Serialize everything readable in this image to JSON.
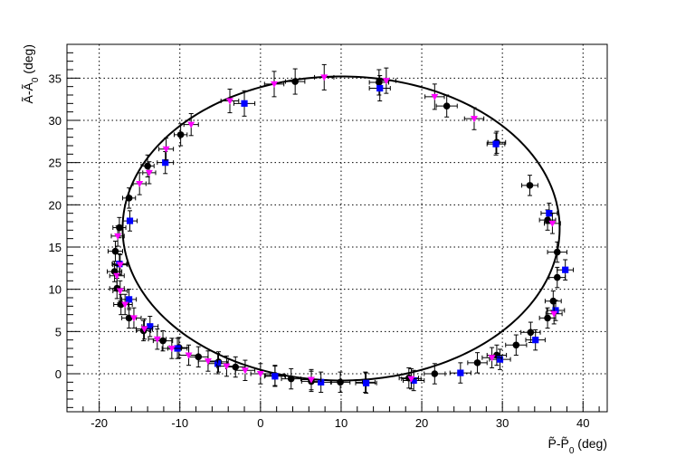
{
  "chart_data": {
    "type": "scatter",
    "xlabel": "P̃-P̃0 (deg)",
    "xlabel_main": "P̃-P̃",
    "xlabel_sub": "0",
    "xlabel_unit": " (deg)",
    "ylabel": "Ã-Ã0 (deg)",
    "ylabel_main": "Ã-Ã",
    "ylabel_sub": "0",
    "ylabel_unit": " (deg)",
    "xlim": [
      -24,
      43
    ],
    "ylim": [
      -4.5,
      39
    ],
    "x_ticks": [
      -20,
      -10,
      0,
      10,
      20,
      30,
      40
    ],
    "y_ticks": [
      0,
      5,
      10,
      15,
      20,
      25,
      30,
      35
    ],
    "x_tick_labels": [
      "-20",
      "-10",
      "0",
      "10",
      "20",
      "30",
      "40"
    ],
    "y_tick_labels": [
      "0",
      "5",
      "10",
      "15",
      "20",
      "25",
      "30",
      "35"
    ],
    "grid": true,
    "fit_curve": {
      "type": "ellipse",
      "center": [
        10.0,
        17.2
      ],
      "semi_axis_x": 27.1,
      "semi_axis_y": 18.0,
      "tilt_deg": 0,
      "color": "#000000"
    },
    "series": [
      {
        "marker": "circle",
        "color": "#000000",
        "points": [
          [
            -18.0,
            14.5,
            0.9,
            1.2
          ],
          [
            -17.5,
            17.3,
            0.8,
            1.2
          ],
          [
            -16.3,
            20.8,
            0.8,
            1.2
          ],
          [
            -14.0,
            24.6,
            0.8,
            1.3
          ],
          [
            -9.9,
            28.3,
            0.8,
            1.3
          ],
          [
            4.3,
            34.6,
            1.2,
            1.5
          ],
          [
            14.7,
            34.5,
            1.2,
            1.5
          ],
          [
            23.1,
            31.7,
            1.3,
            1.3
          ],
          [
            29.3,
            27.4,
            1.1,
            1.3
          ],
          [
            33.4,
            22.3,
            1.0,
            1.2
          ],
          [
            35.6,
            18.2,
            1.0,
            1.2
          ],
          [
            36.8,
            14.4,
            1.2,
            1.2
          ],
          [
            36.8,
            11.4,
            1.0,
            1.2
          ],
          [
            36.3,
            8.6,
            1.0,
            1.2
          ],
          [
            35.6,
            6.6,
            1.0,
            1.2
          ],
          [
            33.5,
            4.9,
            1.2,
            1.2
          ],
          [
            31.7,
            3.4,
            1.3,
            1.2
          ],
          [
            29.3,
            2.2,
            1.2,
            1.2
          ],
          [
            26.9,
            1.3,
            1.2,
            1.2
          ],
          [
            21.6,
            0.0,
            1.3,
            1.2
          ],
          [
            18.4,
            -0.5,
            1.2,
            1.2
          ],
          [
            13.0,
            -1.0,
            1.2,
            1.2
          ],
          [
            9.9,
            -1.0,
            1.2,
            1.2
          ],
          [
            6.3,
            -0.9,
            1.2,
            1.2
          ],
          [
            3.8,
            -0.6,
            1.2,
            1.2
          ],
          [
            1.8,
            -0.2,
            1.2,
            1.2
          ],
          [
            -3.1,
            0.8,
            1.2,
            1.2
          ],
          [
            -5.2,
            1.4,
            1.2,
            1.2
          ],
          [
            -7.7,
            2.0,
            1.2,
            1.2
          ],
          [
            -10.1,
            3.1,
            1.2,
            1.2
          ],
          [
            -12.1,
            3.9,
            1.2,
            1.2
          ],
          [
            -14.5,
            5.1,
            0.9,
            1.2
          ],
          [
            -16.3,
            6.6,
            0.9,
            1.2
          ],
          [
            -17.3,
            8.2,
            0.9,
            1.2
          ],
          [
            -17.8,
            10.1,
            0.9,
            1.2
          ],
          [
            -18.1,
            12.1,
            0.9,
            1.2
          ]
        ]
      },
      {
        "marker": "square",
        "color": "#0000ff",
        "points": [
          [
            -16.2,
            18.1,
            0.9,
            1.2
          ],
          [
            -11.8,
            25.0,
            1.0,
            1.3
          ],
          [
            -2.0,
            32.0,
            1.3,
            1.5
          ],
          [
            14.8,
            33.8,
            1.3,
            1.5
          ],
          [
            29.2,
            27.2,
            1.1,
            1.3
          ],
          [
            35.8,
            19.0,
            1.0,
            1.2
          ],
          [
            37.8,
            12.3,
            1.0,
            1.2
          ],
          [
            36.6,
            7.5,
            1.1,
            1.2
          ],
          [
            34.1,
            4.0,
            1.2,
            1.2
          ],
          [
            29.7,
            1.7,
            1.3,
            1.2
          ],
          [
            24.8,
            0.1,
            1.3,
            1.2
          ],
          [
            19.0,
            -0.8,
            1.3,
            1.2
          ],
          [
            13.1,
            -1.1,
            1.3,
            1.2
          ],
          [
            7.5,
            -1.0,
            1.3,
            1.2
          ],
          [
            1.8,
            -0.3,
            1.3,
            1.2
          ],
          [
            -5.3,
            1.2,
            1.2,
            1.2
          ],
          [
            -10.3,
            3.0,
            1.2,
            1.2
          ],
          [
            -13.7,
            5.6,
            1.0,
            1.2
          ],
          [
            -16.3,
            8.8,
            0.9,
            1.2
          ],
          [
            -17.5,
            13.0,
            0.9,
            1.2
          ]
        ]
      },
      {
        "marker": "triangle-down",
        "color": "#ff00ff",
        "points": [
          [
            -17.7,
            16.3,
            0.8,
            1.2
          ],
          [
            -15.0,
            22.5,
            0.8,
            1.3
          ],
          [
            -13.8,
            23.8,
            0.8,
            1.3
          ],
          [
            -11.7,
            26.6,
            0.9,
            1.3
          ],
          [
            -8.6,
            29.5,
            0.9,
            1.3
          ],
          [
            -3.8,
            32.3,
            1.1,
            1.4
          ],
          [
            1.7,
            34.3,
            1.2,
            1.5
          ],
          [
            7.9,
            35.1,
            1.2,
            1.5
          ],
          [
            15.6,
            34.7,
            1.2,
            1.5
          ],
          [
            21.6,
            32.8,
            1.2,
            1.5
          ],
          [
            26.5,
            30.2,
            1.2,
            1.3
          ],
          [
            36.2,
            17.8,
            1.0,
            1.2
          ],
          [
            36.4,
            7.1,
            1.0,
            1.2
          ],
          [
            28.7,
            1.9,
            1.2,
            1.2
          ],
          [
            18.7,
            -0.6,
            1.2,
            1.2
          ],
          [
            6.3,
            -0.7,
            1.2,
            1.2
          ],
          [
            0.0,
            0.0,
            1.2,
            1.2
          ],
          [
            -1.9,
            0.4,
            1.2,
            1.2
          ],
          [
            -4.2,
            0.9,
            1.2,
            1.2
          ],
          [
            -6.5,
            1.5,
            1.2,
            1.2
          ],
          [
            -8.9,
            2.2,
            1.2,
            1.2
          ],
          [
            -11.0,
            3.0,
            1.2,
            1.2
          ],
          [
            -12.8,
            4.1,
            1.1,
            1.2
          ],
          [
            -14.4,
            5.3,
            1.0,
            1.2
          ],
          [
            -15.7,
            6.6,
            0.9,
            1.2
          ],
          [
            -16.8,
            8.2,
            0.9,
            1.2
          ],
          [
            -17.4,
            9.8,
            0.9,
            1.2
          ],
          [
            -17.8,
            11.6,
            0.9,
            1.2
          ],
          [
            -17.4,
            12.9,
            0.9,
            1.2
          ]
        ]
      }
    ]
  }
}
